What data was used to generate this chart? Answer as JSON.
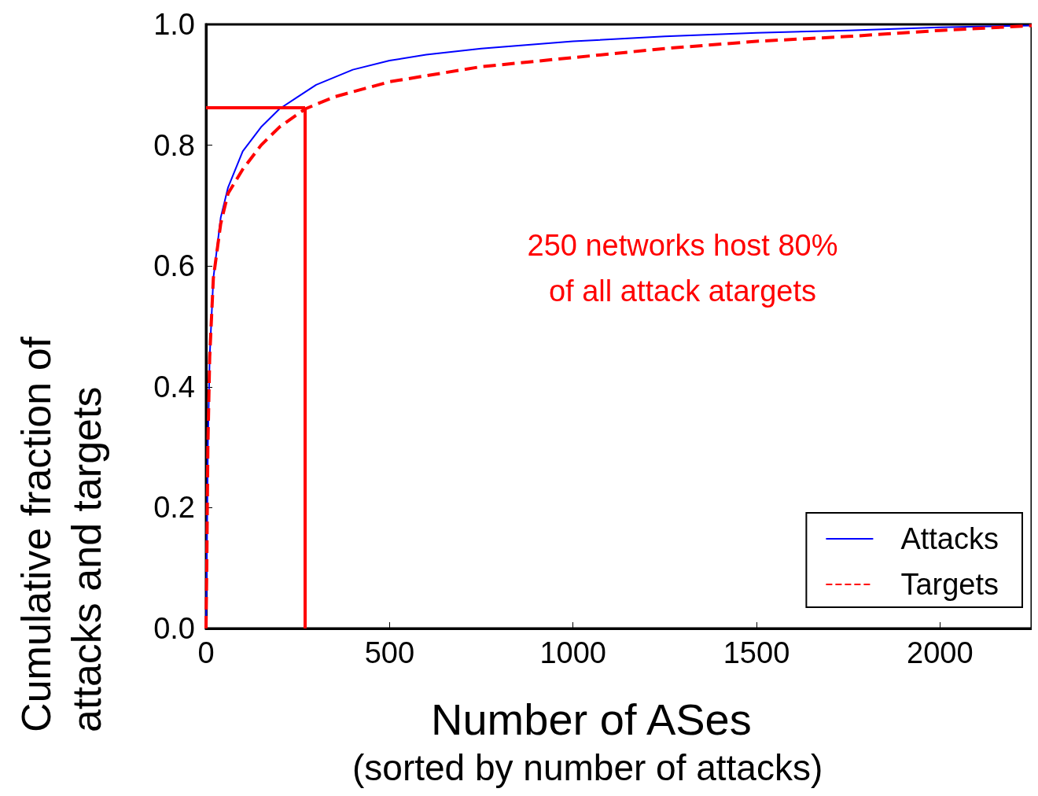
{
  "chart_data": {
    "type": "line",
    "xlabel": "Number of ASes\n(sorted by number of attacks)",
    "ylabel": "Cumulative fraction of\nattacks and targets",
    "annotations": [
      "250 networks host 80%\nof all attack atargets"
    ],
    "xlim": [
      0,
      2250
    ],
    "xticks": [
      0,
      500,
      1000,
      1500,
      2000
    ],
    "ylim": [
      0,
      1
    ],
    "yticks": [
      {
        "value": 0,
        "label": "0.0"
      },
      {
        "value": 0.2,
        "label": "0.2"
      },
      {
        "value": 0.4,
        "label": "0.4"
      },
      {
        "value": 0.6,
        "label": "0.6"
      },
      {
        "value": 0.8,
        "label": "0.8"
      },
      {
        "value": 1,
        "label": "1.0"
      }
    ],
    "grid": false,
    "legend": "bottom right",
    "marker": "none",
    "ref_lines": [
      {
        "axis": "y",
        "value": 0.862,
        "color": "#ff0000"
      },
      {
        "axis": "x",
        "value": 270,
        "color": "#ff0000"
      }
    ],
    "series": [
      {
        "name": "Attacks",
        "color": "#0000ff",
        "line_style": "solid",
        "x": [
          0,
          2,
          5,
          10,
          20,
          40,
          60,
          100,
          150,
          200,
          250,
          300,
          400,
          500,
          600,
          750,
          1000,
          1250,
          1500,
          1750,
          2000,
          2250
        ],
        "values": [
          0,
          0.1,
          0.3,
          0.45,
          0.58,
          0.68,
          0.73,
          0.79,
          0.83,
          0.86,
          0.88,
          0.9,
          0.925,
          0.94,
          0.95,
          0.96,
          0.972,
          0.98,
          0.986,
          0.99,
          0.995,
          0.998
        ]
      },
      {
        "name": "Targets",
        "color": "#ff0000",
        "line_style": "dashed",
        "x": [
          0,
          2,
          5,
          10,
          20,
          40,
          60,
          100,
          150,
          200,
          270,
          350,
          500,
          750,
          1000,
          1250,
          1500,
          1750,
          2000,
          2250
        ],
        "values": [
          0,
          0.1,
          0.3,
          0.45,
          0.58,
          0.67,
          0.72,
          0.76,
          0.8,
          0.83,
          0.86,
          0.88,
          0.905,
          0.93,
          0.945,
          0.96,
          0.972,
          0.98,
          0.99,
          0.998
        ]
      }
    ]
  }
}
